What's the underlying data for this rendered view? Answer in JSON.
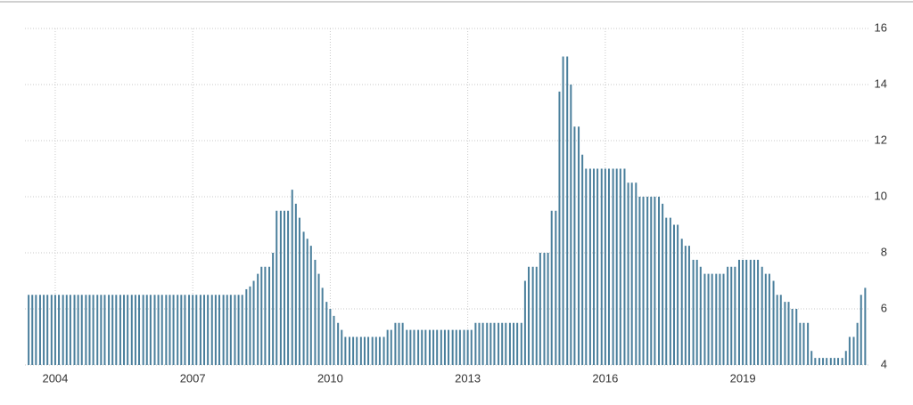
{
  "chart_data": {
    "type": "bar",
    "color": "#4a7f9c",
    "x": [
      2003.42,
      2003.5,
      2003.58,
      2003.67,
      2003.75,
      2003.83,
      2003.92,
      2004.0,
      2004.08,
      2004.17,
      2004.25,
      2004.33,
      2004.42,
      2004.5,
      2004.58,
      2004.67,
      2004.75,
      2004.83,
      2004.92,
      2005.0,
      2005.08,
      2005.17,
      2005.25,
      2005.33,
      2005.42,
      2005.5,
      2005.58,
      2005.67,
      2005.75,
      2005.83,
      2005.92,
      2006.0,
      2006.08,
      2006.17,
      2006.25,
      2006.33,
      2006.42,
      2006.5,
      2006.58,
      2006.67,
      2006.75,
      2006.83,
      2006.92,
      2007.0,
      2007.08,
      2007.17,
      2007.25,
      2007.33,
      2007.42,
      2007.5,
      2007.58,
      2007.67,
      2007.75,
      2007.83,
      2007.92,
      2008.0,
      2008.08,
      2008.17,
      2008.25,
      2008.33,
      2008.42,
      2008.5,
      2008.58,
      2008.67,
      2008.75,
      2008.83,
      2008.92,
      2009.0,
      2009.08,
      2009.17,
      2009.25,
      2009.33,
      2009.42,
      2009.5,
      2009.58,
      2009.67,
      2009.75,
      2009.83,
      2009.92,
      2010.0,
      2010.08,
      2010.17,
      2010.25,
      2010.33,
      2010.42,
      2010.5,
      2010.58,
      2010.67,
      2010.75,
      2010.83,
      2010.92,
      2011.0,
      2011.08,
      2011.17,
      2011.25,
      2011.33,
      2011.42,
      2011.5,
      2011.58,
      2011.67,
      2011.75,
      2011.83,
      2011.92,
      2012.0,
      2012.08,
      2012.17,
      2012.25,
      2012.33,
      2012.42,
      2012.5,
      2012.58,
      2012.67,
      2012.75,
      2012.83,
      2012.92,
      2013.0,
      2013.08,
      2013.17,
      2013.25,
      2013.33,
      2013.42,
      2013.5,
      2013.58,
      2013.67,
      2013.75,
      2013.83,
      2013.92,
      2014.0,
      2014.08,
      2014.17,
      2014.25,
      2014.33,
      2014.42,
      2014.5,
      2014.58,
      2014.67,
      2014.75,
      2014.83,
      2014.92,
      2015.0,
      2015.08,
      2015.17,
      2015.25,
      2015.33,
      2015.42,
      2015.5,
      2015.58,
      2015.67,
      2015.75,
      2015.83,
      2015.92,
      2016.0,
      2016.08,
      2016.17,
      2016.25,
      2016.33,
      2016.42,
      2016.5,
      2016.58,
      2016.67,
      2016.75,
      2016.83,
      2016.92,
      2017.0,
      2017.08,
      2017.17,
      2017.25,
      2017.33,
      2017.42,
      2017.5,
      2017.58,
      2017.67,
      2017.75,
      2017.83,
      2017.92,
      2018.0,
      2018.08,
      2018.17,
      2018.25,
      2018.33,
      2018.42,
      2018.5,
      2018.58,
      2018.67,
      2018.75,
      2018.83,
      2018.92,
      2019.0,
      2019.08,
      2019.17,
      2019.25,
      2019.33,
      2019.42,
      2019.5,
      2019.58,
      2019.67,
      2019.75,
      2019.83,
      2019.92,
      2020.0,
      2020.08,
      2020.17,
      2020.25,
      2020.33,
      2020.42,
      2020.5,
      2020.58,
      2020.67,
      2020.75,
      2020.83,
      2020.92,
      2021.0,
      2021.08,
      2021.17,
      2021.25,
      2021.33,
      2021.42,
      2021.5,
      2021.58,
      2021.67
    ],
    "values": [
      6.5,
      6.5,
      6.5,
      6.5,
      6.5,
      6.5,
      6.5,
      6.5,
      6.5,
      6.5,
      6.5,
      6.5,
      6.5,
      6.5,
      6.5,
      6.5,
      6.5,
      6.5,
      6.5,
      6.5,
      6.5,
      6.5,
      6.5,
      6.5,
      6.5,
      6.5,
      6.5,
      6.5,
      6.5,
      6.5,
      6.5,
      6.5,
      6.5,
      6.5,
      6.5,
      6.5,
      6.5,
      6.5,
      6.5,
      6.5,
      6.5,
      6.5,
      6.5,
      6.5,
      6.5,
      6.5,
      6.5,
      6.5,
      6.5,
      6.5,
      6.5,
      6.5,
      6.5,
      6.5,
      6.5,
      6.5,
      6.5,
      6.7,
      6.8,
      7,
      7.25,
      7.5,
      7.5,
      7.5,
      8,
      9.5,
      9.5,
      9.5,
      9.5,
      10.25,
      9.75,
      9.25,
      8.75,
      8.5,
      8.25,
      7.75,
      7.25,
      6.75,
      6.25,
      6,
      5.75,
      5.5,
      5.25,
      5,
      5,
      5,
      5,
      5,
      5,
      5,
      5,
      5,
      5,
      5,
      5.25,
      5.25,
      5.5,
      5.5,
      5.5,
      5.25,
      5.25,
      5.25,
      5.25,
      5.25,
      5.25,
      5.25,
      5.25,
      5.25,
      5.25,
      5.25,
      5.25,
      5.25,
      5.25,
      5.25,
      5.25,
      5.25,
      5.25,
      5.5,
      5.5,
      5.5,
      5.5,
      5.5,
      5.5,
      5.5,
      5.5,
      5.5,
      5.5,
      5.5,
      5.5,
      5.5,
      7,
      7.5,
      7.5,
      7.5,
      8,
      8,
      8,
      9.5,
      9.5,
      13.75,
      15,
      15,
      14,
      12.5,
      12.5,
      11.5,
      11,
      11,
      11,
      11,
      11,
      11,
      11,
      11,
      11,
      11,
      11,
      10.5,
      10.5,
      10.5,
      10,
      10,
      10,
      10,
      10,
      10,
      9.75,
      9.25,
      9.25,
      9,
      9,
      8.5,
      8.25,
      8.25,
      7.75,
      7.75,
      7.5,
      7.25,
      7.25,
      7.25,
      7.25,
      7.25,
      7.25,
      7.5,
      7.5,
      7.5,
      7.75,
      7.75,
      7.75,
      7.75,
      7.75,
      7.75,
      7.5,
      7.25,
      7.25,
      7,
      6.5,
      6.5,
      6.25,
      6.25,
      6,
      6,
      5.5,
      5.5,
      5.5,
      4.5,
      4.25,
      4.25,
      4.25,
      4.25,
      4.25,
      4.25,
      4.25,
      4.25,
      4.5,
      5,
      5,
      5.5,
      6.5,
      6.75
    ],
    "xlim": [
      2003.34,
      2021.76
    ],
    "xticks": [
      2004,
      2007,
      2010,
      2013,
      2016,
      2019
    ],
    "ylim": [
      4,
      16
    ],
    "yticks": [
      4,
      6,
      8,
      10,
      12,
      14,
      16
    ],
    "grid": true
  }
}
